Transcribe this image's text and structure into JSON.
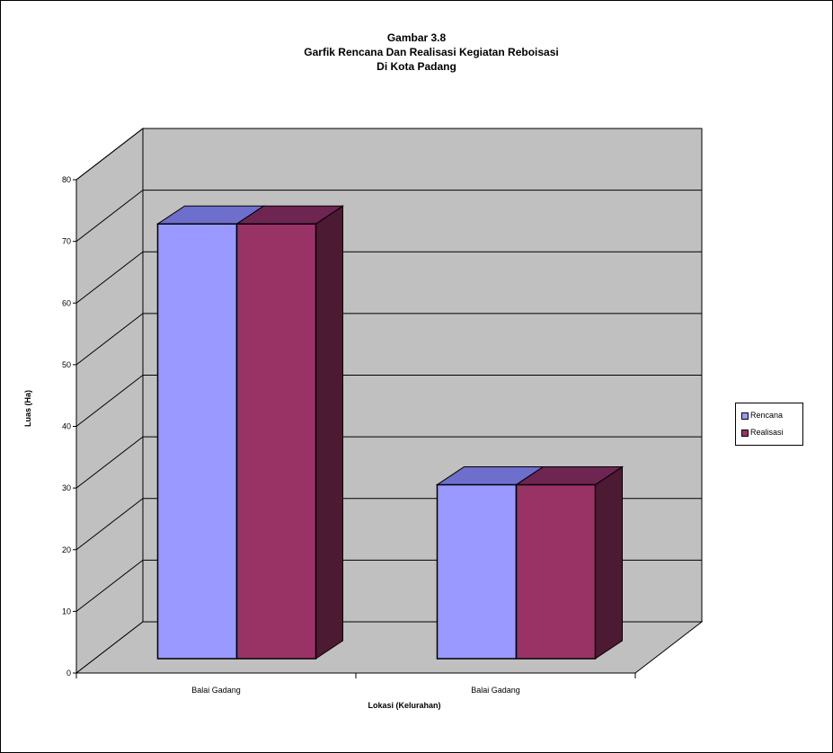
{
  "title": {
    "line1": "Gambar 3.8",
    "line2": "Garfik Rencana  Dan Realisasi Kegiatan Reboisasi",
    "line3": "Di Kota Padang"
  },
  "legend": {
    "items": [
      {
        "name": "Rencana",
        "color": "#9999ff"
      },
      {
        "name": "Realisasi",
        "color": "#993366"
      }
    ]
  },
  "chart_data": {
    "type": "bar",
    "style": "3d-clustered-column",
    "categories": [
      "Balai Gadang",
      "Balai Gadang"
    ],
    "series": [
      {
        "name": "Rencana",
        "values": [
          75,
          30
        ],
        "color": "#9999ff"
      },
      {
        "name": "Realisasi",
        "values": [
          75,
          30
        ],
        "color": "#993366"
      }
    ],
    "xlabel": "Lokasi (Kelurahan)",
    "ylabel": "Luas (Ha)",
    "ylim": [
      0,
      80
    ],
    "yticks": [
      0,
      10,
      20,
      30,
      40,
      50,
      60,
      70,
      80
    ],
    "grid": true,
    "legend_position": "right",
    "wall_color": "#c0c0c0"
  }
}
